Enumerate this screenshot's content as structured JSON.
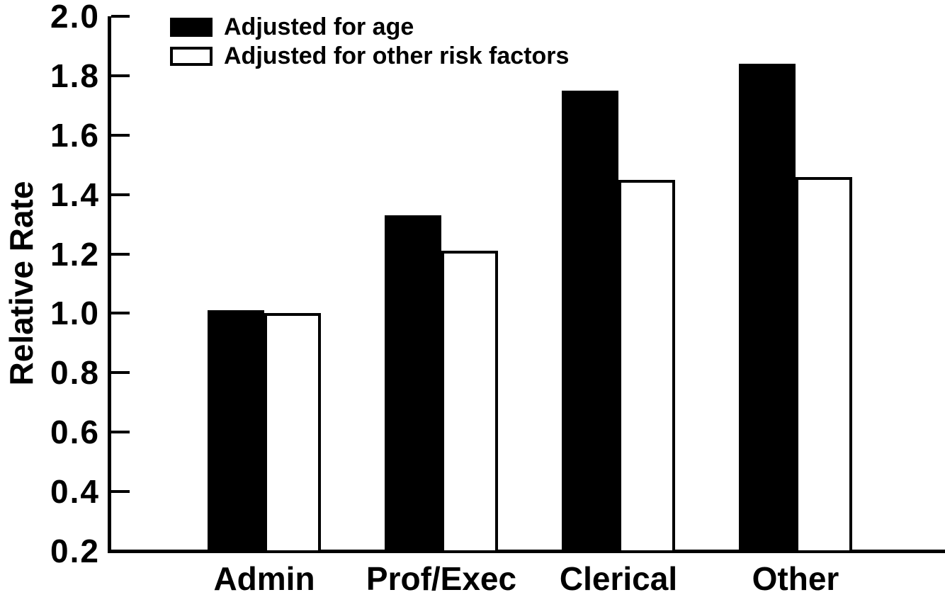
{
  "chart_data": {
    "type": "bar",
    "title": "",
    "xlabel": "",
    "ylabel": "Relative Rate",
    "categories": [
      "Admin",
      "Prof/Exec",
      "Clerical",
      "Other"
    ],
    "series": [
      {
        "name": "Adjusted for age",
        "fill": "solid-black",
        "values": [
          1.01,
          1.33,
          1.75,
          1.84
        ]
      },
      {
        "name": "Adjusted for other risk factors",
        "fill": "white-outlined",
        "values": [
          1.0,
          1.21,
          1.45,
          1.46
        ]
      }
    ],
    "ylim": [
      0.2,
      2.0
    ],
    "yticks": [
      2.0,
      1.8,
      1.6,
      1.4,
      1.2,
      1.0,
      0.8,
      0.6,
      0.4,
      0.2
    ],
    "ytick_decimals": 1,
    "grid": false,
    "legend_position": "top-left",
    "colors": {
      "foreground": "#000000",
      "background": "#ffffff"
    }
  }
}
